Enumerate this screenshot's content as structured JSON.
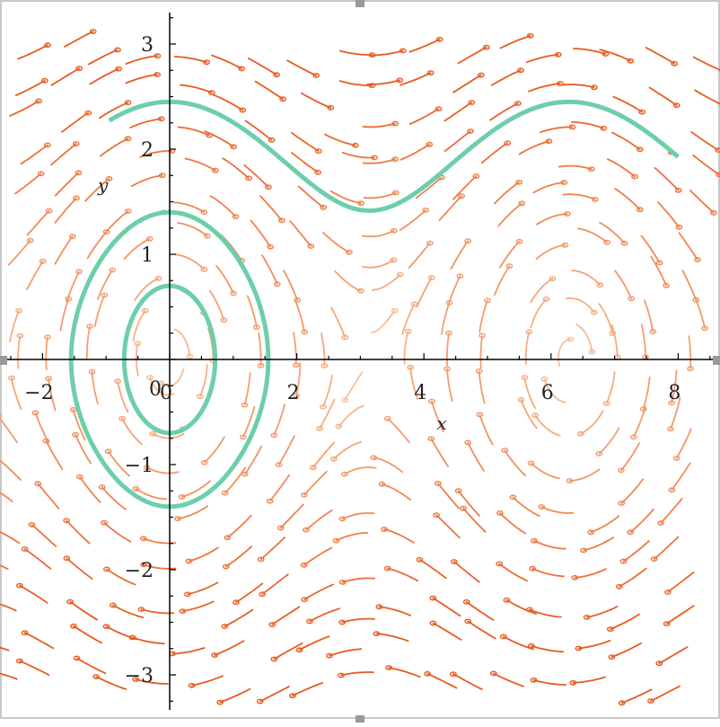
{
  "chart_data": {
    "type": "phase-portrait",
    "xlabel": "x",
    "ylabel": "y",
    "xlim": [
      -2.6,
      8.6
    ],
    "ylim": [
      -3.3,
      3.3
    ],
    "x_ticks": [
      "-2",
      "0",
      "2",
      "4",
      "6",
      "8"
    ],
    "y_ticks": [
      "-3",
      "-2",
      "-1",
      "1",
      "2",
      "3"
    ],
    "x_tick_values": [
      -2,
      0,
      2,
      4,
      6,
      8
    ],
    "y_tick_values": [
      -3,
      -2,
      -1,
      1,
      2,
      3
    ],
    "vector_field": {
      "dx": "y",
      "dy": "-sin(x)"
    },
    "trajectories": [
      {
        "x0": 0,
        "y0": 0.7,
        "kind": "closed"
      },
      {
        "x0": 0,
        "y0": 1.4,
        "kind": "closed"
      },
      {
        "x0": 0,
        "y0": 2.45,
        "kind": "open",
        "x_range": [
          -0.95,
          8.0
        ]
      }
    ],
    "colors": {
      "trajectory": "#6dcfaa",
      "field_light": "#f9c7a0",
      "field_dark": "#e85a1e",
      "axis": "#000000",
      "frame": "#cccccc"
    }
  }
}
